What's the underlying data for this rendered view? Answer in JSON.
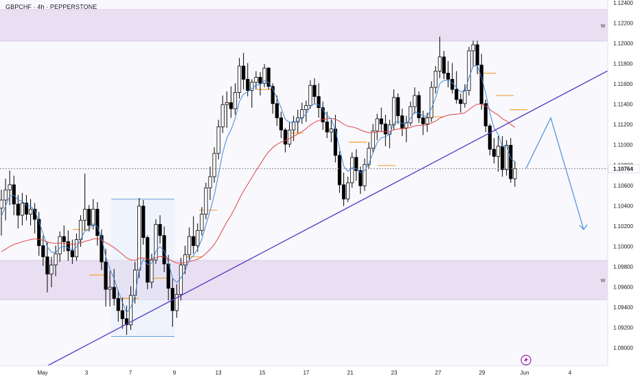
{
  "header": {
    "title": "GBPCHF · 4h · PEPPERSTONE"
  },
  "chart_data": {
    "type": "candlestick",
    "symbol": "GBPCHF",
    "timeframe": "4h",
    "broker": "PEPPERSTONE",
    "price_axis": {
      "ticks": [
        "1.12400",
        "1.12200",
        "1.12000",
        "1.11800",
        "1.11600",
        "1.11400",
        "1.11200",
        "1.11000",
        "1.10800",
        "1.10600",
        "1.10400",
        "1.10200",
        "1.10000",
        "1.09800",
        "1.09600",
        "1.09400",
        "1.09200",
        "1.09000"
      ],
      "min": 1.0898,
      "max": 1.1242
    },
    "date_axis": {
      "ticks": [
        "May",
        "3",
        "7",
        "9",
        "13",
        "15",
        "17",
        "21",
        "23",
        "27",
        "29",
        "Jun",
        "4"
      ]
    },
    "current_price_label": "1.10764",
    "current_price": 1.10764,
    "zones": [
      {
        "label": "W",
        "from": 1.12022,
        "to": 1.12332,
        "color": "#e9dff2"
      },
      {
        "label": "W",
        "from": 1.09474,
        "to": 1.0986,
        "color": "#e9dff2"
      }
    ],
    "range_box": {
      "high": 1.10464,
      "low": 1.09112
    },
    "trendline_color": "#5b3fc4",
    "ema_fast_color": "#3f86d8",
    "ema_slow_color": "#e04444",
    "bull_color": "#ffffff",
    "bear_color": "#000000",
    "projection_color": "#4a8fd6",
    "level_color": "#f2a33c",
    "projection": [
      1.10766,
      1.11266,
      1.10166
    ],
    "candles": [
      [
        1.10376,
        1.10556,
        1.10106,
        1.10456
      ],
      [
        1.10456,
        1.10666,
        1.10256,
        1.10556
      ],
      [
        1.10556,
        1.10746,
        1.10406,
        1.10606
      ],
      [
        1.10606,
        1.10696,
        1.10306,
        1.10416
      ],
      [
        1.10416,
        1.10506,
        1.10176,
        1.10306
      ],
      [
        1.10306,
        1.10526,
        1.10206,
        1.10426
      ],
      [
        1.10426,
        1.10506,
        1.10256,
        1.10316
      ],
      [
        1.10316,
        1.10466,
        1.10206,
        1.10366
      ],
      [
        1.10366,
        1.10426,
        1.10126,
        1.10266
      ],
      [
        1.10266,
        1.10336,
        1.09906,
        1.10006
      ],
      [
        1.10006,
        1.10106,
        1.09806,
        1.09896
      ],
      [
        1.09896,
        1.10046,
        1.09546,
        1.09726
      ],
      [
        1.09726,
        1.09896,
        1.09596,
        1.09816
      ],
      [
        1.09816,
        1.10006,
        1.09706,
        1.09926
      ],
      [
        1.09926,
        1.10146,
        1.09846,
        1.10096
      ],
      [
        1.10096,
        1.10206,
        1.09946,
        1.10046
      ],
      [
        1.10046,
        1.10156,
        1.09856,
        1.09956
      ],
      [
        1.09956,
        1.10066,
        1.09826,
        1.09896
      ],
      [
        1.09896,
        1.10126,
        1.09856,
        1.10066
      ],
      [
        1.10066,
        1.10306,
        1.09996,
        1.10256
      ],
      [
        1.10256,
        1.10716,
        1.10156,
        1.10366
      ],
      [
        1.10366,
        1.10406,
        1.10146,
        1.10206
      ],
      [
        1.10206,
        1.10466,
        1.10166,
        1.10366
      ],
      [
        1.10366,
        1.10436,
        1.10006,
        1.10106
      ],
      [
        1.10106,
        1.10166,
        1.09766,
        1.09846
      ],
      [
        1.09846,
        1.09976,
        1.09406,
        1.09576
      ],
      [
        1.09576,
        1.09756,
        1.09406,
        1.09596
      ],
      [
        1.09596,
        1.09776,
        1.09416,
        1.09486
      ],
      [
        1.09486,
        1.09566,
        1.09256,
        1.09366
      ],
      [
        1.09366,
        1.09496,
        1.09186,
        1.09286
      ],
      [
        1.09286,
        1.09416,
        1.09126,
        1.09226
      ],
      [
        1.09226,
        1.09606,
        1.09176,
        1.09516
      ],
      [
        1.09516,
        1.09846,
        1.09436,
        1.09766
      ],
      [
        1.09766,
        1.10476,
        1.09686,
        1.10396
      ],
      [
        1.10396,
        1.10456,
        1.10016,
        1.10086
      ],
      [
        1.10086,
        1.10106,
        1.09576,
        1.09646
      ],
      [
        1.09646,
        1.09926,
        1.09586,
        1.09866
      ],
      [
        1.09866,
        1.10266,
        1.09826,
        1.10216
      ],
      [
        1.10216,
        1.10306,
        1.10026,
        1.10106
      ],
      [
        1.10106,
        1.10196,
        1.09746,
        1.09826
      ],
      [
        1.09826,
        1.09916,
        1.09466,
        1.09586
      ],
      [
        1.09586,
        1.09686,
        1.09206,
        1.09366
      ],
      [
        1.09366,
        1.09626,
        1.09296,
        1.09526
      ],
      [
        1.09526,
        1.09886,
        1.09466,
        1.09816
      ],
      [
        1.09816,
        1.10006,
        1.09726,
        1.09916
      ],
      [
        1.09916,
        1.10186,
        1.09866,
        1.10096
      ],
      [
        1.10096,
        1.10296,
        1.09926,
        1.10006
      ],
      [
        1.10006,
        1.10226,
        1.09946,
        1.10156
      ],
      [
        1.10156,
        1.10386,
        1.10106,
        1.10316
      ],
      [
        1.10316,
        1.10626,
        1.10266,
        1.10576
      ],
      [
        1.10576,
        1.10786,
        1.10456,
        1.10686
      ],
      [
        1.10686,
        1.10976,
        1.10626,
        1.10916
      ],
      [
        1.10916,
        1.11246,
        1.10856,
        1.11176
      ],
      [
        1.11176,
        1.11486,
        1.11116,
        1.11396
      ],
      [
        1.11396,
        1.11526,
        1.11166,
        1.11416
      ],
      [
        1.11416,
        1.11576,
        1.11266,
        1.11356
      ],
      [
        1.11356,
        1.11606,
        1.11296,
        1.11516
      ],
      [
        1.11516,
        1.11856,
        1.11456,
        1.11776
      ],
      [
        1.11776,
        1.11906,
        1.11546,
        1.11646
      ],
      [
        1.11646,
        1.11806,
        1.11476,
        1.11536
      ],
      [
        1.11536,
        1.11646,
        1.11366,
        1.11616
      ],
      [
        1.11616,
        1.11726,
        1.11546,
        1.11666
      ],
      [
        1.11666,
        1.11716,
        1.11486,
        1.11606
      ],
      [
        1.11606,
        1.11796,
        1.11566,
        1.11756
      ],
      [
        1.11756,
        1.11766,
        1.11546,
        1.11576
      ],
      [
        1.11576,
        1.11606,
        1.11306,
        1.11406
      ],
      [
        1.11406,
        1.11486,
        1.11186,
        1.11266
      ],
      [
        1.11266,
        1.11326,
        1.11066,
        1.11146
      ],
      [
        1.11146,
        1.11166,
        1.10926,
        1.11006
      ],
      [
        1.11006,
        1.11226,
        1.10976,
        1.11146
      ],
      [
        1.11146,
        1.11286,
        1.11036,
        1.11226
      ],
      [
        1.11226,
        1.11346,
        1.11116,
        1.11266
      ],
      [
        1.11266,
        1.11416,
        1.11206,
        1.11346
      ],
      [
        1.11346,
        1.11436,
        1.11226,
        1.11386
      ],
      [
        1.11386,
        1.11636,
        1.11356,
        1.11586
      ],
      [
        1.11586,
        1.11656,
        1.11406,
        1.11476
      ],
      [
        1.11476,
        1.11606,
        1.11266,
        1.11366
      ],
      [
        1.11366,
        1.11426,
        1.11146,
        1.11226
      ],
      [
        1.11226,
        1.11326,
        1.11066,
        1.11126
      ],
      [
        1.11126,
        1.11246,
        1.11026,
        1.11156
      ],
      [
        1.11156,
        1.11296,
        1.10826,
        1.10896
      ],
      [
        1.10896,
        1.10936,
        1.10526,
        1.10606
      ],
      [
        1.10606,
        1.10726,
        1.10396,
        1.10466
      ],
      [
        1.10466,
        1.10686,
        1.10436,
        1.10626
      ],
      [
        1.10626,
        1.10926,
        1.10576,
        1.10876
      ],
      [
        1.10876,
        1.10956,
        1.10646,
        1.10746
      ],
      [
        1.10746,
        1.10786,
        1.10516,
        1.10596
      ],
      [
        1.10596,
        1.10866,
        1.10546,
        1.10806
      ],
      [
        1.10806,
        1.11026,
        1.10766,
        1.10966
      ],
      [
        1.10966,
        1.11206,
        1.10926,
        1.11136
      ],
      [
        1.11136,
        1.11306,
        1.11046,
        1.11256
      ],
      [
        1.11256,
        1.11366,
        1.11126,
        1.11206
      ],
      [
        1.11206,
        1.11296,
        1.10986,
        1.11106
      ],
      [
        1.11106,
        1.11246,
        1.10966,
        1.11196
      ],
      [
        1.11196,
        1.11546,
        1.11146,
        1.11466
      ],
      [
        1.11466,
        1.11506,
        1.11206,
        1.11286
      ],
      [
        1.11286,
        1.11356,
        1.11086,
        1.11166
      ],
      [
        1.11166,
        1.11286,
        1.11026,
        1.11216
      ],
      [
        1.11216,
        1.11426,
        1.11186,
        1.11376
      ],
      [
        1.11376,
        1.11566,
        1.11306,
        1.11486
      ],
      [
        1.11486,
        1.11526,
        1.11216,
        1.11266
      ],
      [
        1.11266,
        1.11336,
        1.11096,
        1.11206
      ],
      [
        1.11206,
        1.11316,
        1.11126,
        1.11266
      ],
      [
        1.11266,
        1.11626,
        1.11226,
        1.11566
      ],
      [
        1.11566,
        1.11776,
        1.11506,
        1.11726
      ],
      [
        1.11726,
        1.12066,
        1.11656,
        1.11866
      ],
      [
        1.11866,
        1.11926,
        1.11646,
        1.11706
      ],
      [
        1.11706,
        1.11826,
        1.11566,
        1.11646
      ],
      [
        1.11646,
        1.11806,
        1.11506,
        1.11546
      ],
      [
        1.11546,
        1.11726,
        1.11406,
        1.11446
      ],
      [
        1.11446,
        1.11506,
        1.11316,
        1.11406
      ],
      [
        1.11406,
        1.11596,
        1.11366,
        1.11536
      ],
      [
        1.11536,
        1.11966,
        1.11486,
        1.11926
      ],
      [
        1.11926,
        1.12026,
        1.11766,
        1.11986
      ],
      [
        1.11986,
        1.12026,
        1.11696,
        1.11786
      ],
      [
        1.11786,
        1.11896,
        1.11346,
        1.11406
      ],
      [
        1.11406,
        1.11446,
        1.11126,
        1.11186
      ],
      [
        1.11186,
        1.11206,
        1.10896,
        1.10956
      ],
      [
        1.10956,
        1.11066,
        1.10816,
        1.10886
      ],
      [
        1.10886,
        1.11086,
        1.10736,
        1.10986
      ],
      [
        1.10986,
        1.11086,
        1.10686,
        1.10756
      ],
      [
        1.10756,
        1.11046,
        1.10696,
        1.10996
      ],
      [
        1.10996,
        1.11066,
        1.10626,
        1.10666
      ],
      [
        1.10666,
        1.10836,
        1.10586,
        1.10766
      ]
    ],
    "ema_fast": [
      1.10296,
      1.10398,
      1.10492,
      1.10504,
      1.10457,
      1.10445,
      1.10405,
      1.10393,
      1.10353,
      1.10241,
      1.10128,
      1.09993,
      1.09943,
      1.09936,
      1.09985,
      1.10003,
      1.09985,
      1.09959,
      1.09991,
      1.1007,
      1.10149,
      1.10166,
      1.10223,
      1.10192,
      1.10085,
      1.09899,
      1.09777,
      1.0968,
      1.09559,
      1.09447,
      1.09346,
      1.09397,
      1.09508,
      1.0977,
      1.0987,
      1.09821,
      1.09833,
      1.0995,
      1.09998,
      1.09953,
      1.09841,
      1.09686,
      1.09643,
      1.09689,
      1.09757,
      1.09864,
      1.09909,
      1.09972,
      1.10067,
      1.10213,
      1.10349,
      1.10507,
      1.10709,
      1.10918,
      1.11066,
      1.11148,
      1.11261,
      1.11426,
      1.11499,
      1.11522,
      1.11554,
      1.11587,
      1.11592,
      1.11632,
      1.11618,
      1.11551,
      1.11462,
      1.11364,
      1.11251,
      1.11221,
      1.11222,
      1.11235,
      1.11266,
      1.11302,
      1.11377,
      1.11405,
      1.11394,
      1.1135,
      1.11289,
      1.11254,
      1.1115,
      1.10965,
      1.10788,
      1.10738,
      1.10774,
      1.10766,
      1.10724,
      1.10745,
      1.10814,
      1.10918,
      1.11021,
      1.1107,
      1.11079,
      1.11106,
      1.11214,
      1.11232,
      1.11211,
      1.11213,
      1.1126,
      1.11326,
      1.11312,
      1.11284,
      1.1128,
      1.11358,
      1.11462,
      1.11605,
      1.11633,
      1.11637,
      1.11613,
      1.11564,
      1.11522,
      1.11523,
      1.11661,
      1.11776,
      1.11779,
      1.11665,
      1.11509,
      1.11313,
      1.11165,
      1.11102,
      1.10982,
      1.10986,
      1.10866,
      1.10834
    ],
    "ema_slow": [
      1.09946,
      1.09971,
      1.09999,
      1.10018,
      1.1003,
      1.10045,
      1.10055,
      1.10067,
      1.10073,
      1.1007,
      1.1006,
      1.10043,
      1.10033,
      1.10029,
      1.10032,
      1.10031,
      1.10027,
      1.1002,
      1.10022,
      1.10033,
      1.10049,
      1.10058,
      1.10073,
      1.10075,
      1.10061,
      1.10036,
      1.10014,
      1.09987,
      1.09955,
      1.09921,
      1.09886,
      1.09866,
      1.09861,
      1.09883,
      1.09885,
      1.09872,
      1.09872,
      1.09889,
      1.09899,
      1.09895,
      1.09879,
      1.09852,
      1.09835,
      1.09834,
      1.09838,
      1.09851,
      1.09859,
      1.09873,
      1.09895,
      1.0993,
      1.09969,
      1.10018,
      1.10085,
      1.10164,
      1.10239,
      1.10306,
      1.10382,
      1.10469,
      1.10544,
      1.10609,
      1.10678,
      1.10747,
      1.10809,
      1.10875,
      1.1093,
      1.10972,
      1.11004,
      1.11027,
      1.11041,
      1.11061,
      1.11083,
      1.11106,
      1.11132,
      1.11159,
      1.11195,
      1.11221,
      1.1124,
      1.1125,
      1.11256,
      1.11261,
      1.11253,
      1.11231,
      1.11203,
      1.11183,
      1.11177,
      1.11165,
      1.11147,
      1.1113,
      1.1112,
      1.1112,
      1.11126,
      1.1113,
      1.11129,
      1.11132,
      1.11148,
      1.11156,
      1.11158,
      1.11161,
      1.11171,
      1.11187,
      1.11191,
      1.11192,
      1.11196,
      1.11214,
      1.11234,
      1.11261,
      1.11279,
      1.11292,
      1.11299,
      1.11302,
      1.11306,
      1.11315,
      1.11346,
      1.11378,
      1.11401,
      1.11401,
      1.11381,
      1.11349,
      1.11318,
      1.11294,
      1.11257,
      1.11235,
      1.112,
      1.11173
    ]
  }
}
